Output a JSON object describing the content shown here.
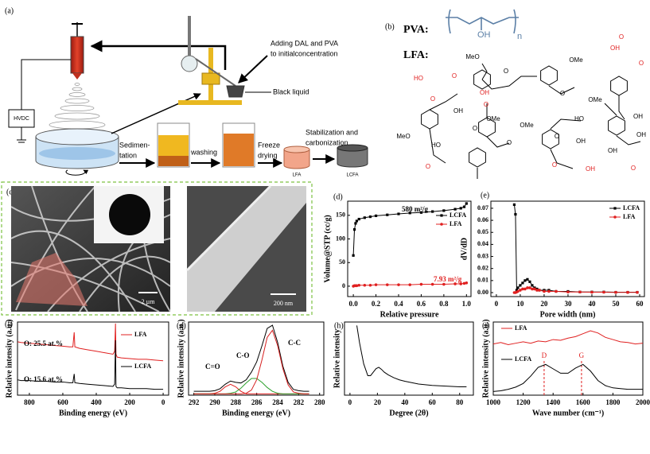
{
  "panel_a": {
    "label": "(a)",
    "hvdc": "HVDC",
    "adding": [
      "Adding DAL and PVA",
      "to initialconcentration"
    ],
    "black_liquid": "Black liquid",
    "sedimentation": [
      "Sedimen-",
      "tation"
    ],
    "washing": "washing",
    "freeze_drying": [
      "Freeze",
      "drying"
    ],
    "stabilization": [
      "Stabilization and",
      "carbonization"
    ],
    "lfa": "LFA",
    "lcfa": "LCFA"
  },
  "panel_b": {
    "label": "(b)",
    "pva": "PVA:",
    "pva_oh": "OH",
    "pva_n": "n",
    "lfa": "LFA:",
    "groups": [
      {
        "text": "MeO",
        "color": "#000000"
      },
      {
        "text": "O",
        "color": "#000000"
      },
      {
        "text": "OMe",
        "color": "#000000"
      },
      {
        "text": "O",
        "color": "#000000"
      },
      {
        "text": "OMe",
        "color": "#000000"
      },
      {
        "text": "OH",
        "color": "#000000"
      },
      {
        "text": "OH",
        "color": "#000000"
      },
      {
        "text": "HO",
        "color": "#e02020"
      },
      {
        "text": "O",
        "color": "#e02020"
      },
      {
        "text": "O",
        "color": "#e02020"
      },
      {
        "text": "OH",
        "color": "#e02020"
      },
      {
        "text": "O",
        "color": "#e02020"
      },
      {
        "text": "O",
        "color": "#e02020"
      },
      {
        "text": "OH",
        "color": "#e02020"
      },
      {
        "text": "O",
        "color": "#e02020"
      },
      {
        "text": "OH",
        "color": "#000000"
      },
      {
        "text": "MeO",
        "color": "#000000"
      },
      {
        "text": "HO",
        "color": "#000000"
      },
      {
        "text": "O",
        "color": "#000000"
      },
      {
        "text": "OMe",
        "color": "#000000"
      },
      {
        "text": "OMe",
        "color": "#000000"
      },
      {
        "text": "O",
        "color": "#000000"
      },
      {
        "text": "HO",
        "color": "#000000"
      },
      {
        "text": "OH",
        "color": "#000000"
      },
      {
        "text": "OH",
        "color": "#000000"
      },
      {
        "text": "O",
        "color": "#000000"
      },
      {
        "text": "O",
        "color": "#e02020"
      },
      {
        "text": "O",
        "color": "#e02020"
      },
      {
        "text": "OH",
        "color": "#e02020"
      },
      {
        "text": "O",
        "color": "#e02020"
      }
    ]
  },
  "panel_c": {
    "label": "(c)",
    "scale_left": "2 µm",
    "scale_right": "200 nm"
  },
  "chart_data": [
    {
      "type": "line",
      "label": "(d)",
      "xlabel": "Relative pressure",
      "ylabel": "Volume@STP (cc/g)",
      "x": [
        0.0,
        0.01,
        0.02,
        0.03,
        0.05,
        0.1,
        0.15,
        0.2,
        0.3,
        0.4,
        0.5,
        0.6,
        0.7,
        0.8,
        0.9,
        0.95,
        0.98,
        1.0
      ],
      "series": [
        {
          "name": "LCFA",
          "color": "#000000",
          "marker": "square",
          "values": [
            65,
            120,
            133,
            138,
            142,
            145,
            147,
            149,
            151,
            153,
            155,
            156,
            158,
            160,
            163,
            165,
            168,
            175
          ]
        },
        {
          "name": "LFA",
          "color": "#e02020",
          "marker": "circle",
          "values": [
            0,
            1,
            1,
            1,
            2,
            2,
            2,
            3,
            3,
            3,
            3,
            4,
            4,
            4,
            5,
            5,
            6,
            7
          ]
        }
      ],
      "xlim": [
        -0.05,
        1.04
      ],
      "ylim": [
        -22,
        180
      ],
      "xticks": [
        {
          "value": 0,
          "label": "0.0"
        },
        0.2,
        0.4,
        0.6,
        0.8,
        {
          "value": 1,
          "label": "1.0"
        }
      ],
      "yticks": [
        0,
        50,
        100,
        150
      ],
      "legend": "upper right",
      "annotations": [
        {
          "text": "580 m²/g",
          "color": "#000000"
        },
        {
          "text": "7.93 m²/g",
          "color": "#e02020"
        }
      ]
    },
    {
      "type": "line",
      "label": "(e)",
      "xlabel": "Pore width (nm)",
      "ylabel": "dV/dD",
      "x": [
        7.5,
        8,
        8.5,
        9,
        10,
        11,
        12,
        13,
        14,
        15,
        16,
        17,
        18,
        20,
        22,
        25,
        30,
        35,
        40,
        45,
        50,
        55,
        59
      ],
      "series": [
        {
          "name": "LCFA",
          "color": "#000000",
          "marker": "square",
          "values": [
            0.073,
            0.065,
            0.002,
            0.004,
            0.006,
            0.008,
            0.01,
            0.011,
            0.009,
            0.006,
            0.004,
            0.003,
            0.002,
            0.002,
            0.002,
            0.001,
            0.001,
            0.0005,
            0.0005,
            0.0005,
            0.0003,
            0.0003,
            0.0003
          ]
        },
        {
          "name": "LFA",
          "color": "#e02020",
          "marker": "circle",
          "values": [
            0.0,
            0.0,
            0.0005,
            0.001,
            0.002,
            0.003,
            0.003,
            0.004,
            0.004,
            0.003,
            0.003,
            0.002,
            0.002,
            0.001,
            0.001,
            0.001,
            0.0005,
            0.0005,
            0.0003,
            0.0003,
            0.0002,
            0.0002,
            0.0002
          ]
        }
      ],
      "xlim": [
        -2.3,
        62
      ],
      "ylim": [
        -0.0033,
        0.0759
      ],
      "xticks": [
        0,
        10,
        20,
        30,
        40,
        50,
        60
      ],
      "yticks": [
        {
          "value": 0,
          "label": "0.00"
        },
        0.01,
        0.02,
        0.03,
        0.04,
        0.05,
        0.06,
        0.07
      ],
      "legend": "upper right"
    },
    {
      "type": "line",
      "label": "(f)",
      "xlabel": "Binding energy (eV)",
      "ylabel": "Relative intensity (a.u.)",
      "x": [
        870,
        850,
        800,
        750,
        700,
        650,
        600,
        560,
        540,
        532,
        528,
        500,
        450,
        400,
        350,
        300,
        290,
        285,
        282,
        275,
        250,
        200,
        150,
        100,
        50,
        0
      ],
      "series": [
        {
          "name": "LFA",
          "color": "#e02020",
          "values": [
            73,
            72,
            71,
            70,
            69,
            68,
            67,
            66,
            66,
            86,
            66,
            64,
            62,
            60,
            58,
            56,
            60,
            98,
            56,
            52,
            51,
            50,
            49,
            49,
            48,
            47
          ]
        },
        {
          "name": "LCFA",
          "color": "#000000",
          "values": [
            21,
            20,
            20,
            19,
            19,
            18,
            18,
            17,
            17,
            29,
            17,
            16,
            15,
            14,
            13,
            12,
            15,
            75,
            12,
            10,
            10,
            9,
            9,
            9,
            8,
            8
          ]
        }
      ],
      "xlim": [
        871,
        -33
      ],
      "ylim": [
        0,
        100
      ],
      "xticks": [
        800,
        600,
        400,
        200,
        0
      ],
      "legend": "inline",
      "annotations": [
        {
          "text": "O: 25.5 at.%",
          "color": "#000000"
        },
        {
          "text": "O: 15.6 at.%",
          "color": "#000000"
        }
      ]
    },
    {
      "type": "line",
      "label": "(g)",
      "xlabel": "Binding energy (eV)",
      "ylabel": "Relative intensity (a.u.)",
      "x": [
        292,
        291.5,
        291,
        290.5,
        290,
        289.5,
        289,
        288.5,
        288,
        287.5,
        287,
        286.5,
        286,
        285.5,
        285,
        284.5,
        284,
        283.5,
        283,
        282.5,
        282,
        281.5,
        281
      ],
      "series": [
        {
          "color": "#000000",
          "values": [
            4,
            4,
            4,
            4,
            5,
            8,
            15,
            20,
            18,
            17,
            22,
            34,
            50,
            75,
            102,
            107,
            80,
            43,
            18,
            7,
            5,
            4,
            4
          ]
        },
        {
          "color": "#e02020",
          "values": [
            0,
            0,
            0,
            0,
            1,
            4,
            11,
            15,
            11,
            4,
            0,
            0,
            0,
            0,
            0,
            0,
            0,
            0,
            0,
            0,
            0,
            0,
            0
          ]
        },
        {
          "color": "#2ca02c",
          "values": [
            0,
            0,
            0,
            0,
            0,
            0,
            0,
            1,
            3,
            9,
            17,
            24,
            24,
            18,
            10,
            4,
            1,
            0,
            0,
            0,
            0,
            0,
            0
          ]
        },
        {
          "color": "#d62020",
          "values": [
            0,
            0,
            0,
            0,
            0,
            0,
            0,
            0,
            0,
            0,
            1,
            6,
            22,
            53,
            88,
            99,
            75,
            39,
            14,
            3,
            1,
            0,
            0
          ]
        }
      ],
      "xlim": [
        292.5,
        279.6
      ],
      "ylim": [
        -2,
        112
      ],
      "xticks": [
        292,
        290,
        288,
        286,
        284,
        282,
        280
      ],
      "annotations": [
        {
          "text": "C=O",
          "color": "#000000"
        },
        {
          "text": "C-O",
          "color": "#000000"
        },
        {
          "text": "C-C",
          "color": "#000000"
        }
      ]
    },
    {
      "type": "line",
      "label": "(h)",
      "xlabel": "Degree (2θ)",
      "ylabel": "Relative intensity",
      "x": [
        5,
        7,
        10,
        13,
        15,
        17,
        19,
        21,
        23,
        25,
        28,
        32,
        36,
        40,
        50,
        60,
        70,
        80,
        85
      ],
      "series": [
        {
          "color": "#000000",
          "values": [
            100,
            75,
            45,
            28,
            28,
            33,
            38,
            40,
            37,
            33,
            29,
            25,
            22,
            20,
            16,
            14,
            13,
            12,
            12
          ]
        }
      ],
      "xlim": [
        -4,
        90
      ],
      "ylim": [
        0,
        105
      ],
      "xticks": [
        0,
        20,
        40,
        60,
        80
      ]
    },
    {
      "type": "line",
      "label": "(i)",
      "xlabel": "Wave number (cm⁻¹)",
      "ylabel": "Relative intensity (a.u.)",
      "x": [
        1000,
        1050,
        1100,
        1150,
        1200,
        1250,
        1300,
        1350,
        1400,
        1450,
        1500,
        1550,
        1600,
        1650,
        1700,
        1750,
        1800,
        1850,
        1900,
        1950,
        2000
      ],
      "series": [
        {
          "name": "LFA",
          "color": "#e02020",
          "values": [
            70,
            72,
            69,
            71,
            73,
            71,
            74,
            73,
            76,
            75,
            78,
            80,
            84,
            88,
            85,
            79,
            76,
            73,
            72,
            70,
            71
          ]
        },
        {
          "name": "LCFA",
          "color": "#000000",
          "values": [
            5,
            6,
            8,
            11,
            16,
            26,
            38,
            42,
            36,
            30,
            30,
            37,
            42,
            33,
            20,
            13,
            10,
            9,
            8,
            8,
            8
          ]
        }
      ],
      "xlim": [
        1000,
        2000
      ],
      "ylim": [
        0,
        100
      ],
      "xticks": [
        1000,
        1200,
        1400,
        1600,
        1800,
        2000
      ],
      "legend": "inline",
      "peak_lines": [
        {
          "label": "D",
          "x": 1340
        },
        {
          "label": "G",
          "x": 1590
        }
      ]
    }
  ]
}
